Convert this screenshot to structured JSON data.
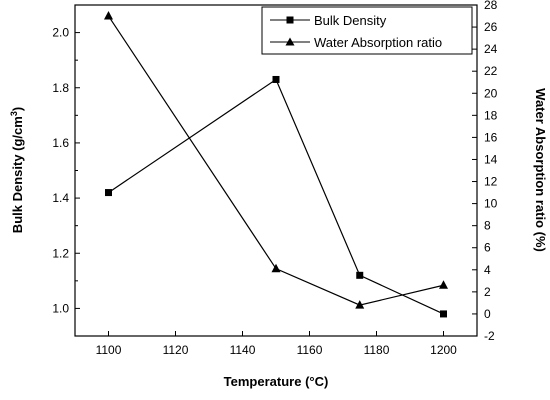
{
  "chart_data": {
    "type": "line",
    "xlabel": "Temperature",
    "xlabel_unit": "(°C)",
    "ylabel_left": "Bulk Density (g/cm",
    "ylabel_left_sup": "3",
    "ylabel_left_close": ")",
    "ylabel_right": "Water Absorption ratio (%)",
    "x": [
      1100,
      1150,
      1175,
      1200
    ],
    "xlim": [
      1090,
      1210
    ],
    "xticks": [
      1100,
      1120,
      1140,
      1160,
      1180,
      1200
    ],
    "ylim_left": [
      0.9,
      2.1
    ],
    "yticks_left": [
      1.0,
      1.2,
      1.4,
      1.6,
      1.8,
      2.0
    ],
    "ylim_right": [
      -2,
      28
    ],
    "yticks_right": [
      -2,
      0,
      2,
      4,
      6,
      8,
      10,
      12,
      14,
      16,
      18,
      20,
      22,
      24,
      26,
      28
    ],
    "series": [
      {
        "name": "Bulk Density",
        "axis": "left",
        "marker": "square",
        "values": [
          1.42,
          1.83,
          1.12,
          0.98
        ]
      },
      {
        "name": "Water Absorption ratio",
        "axis": "right",
        "marker": "triangle",
        "values": [
          27.0,
          4.1,
          0.8,
          2.6
        ]
      }
    ],
    "legend_position": "top-right",
    "grid": false
  }
}
